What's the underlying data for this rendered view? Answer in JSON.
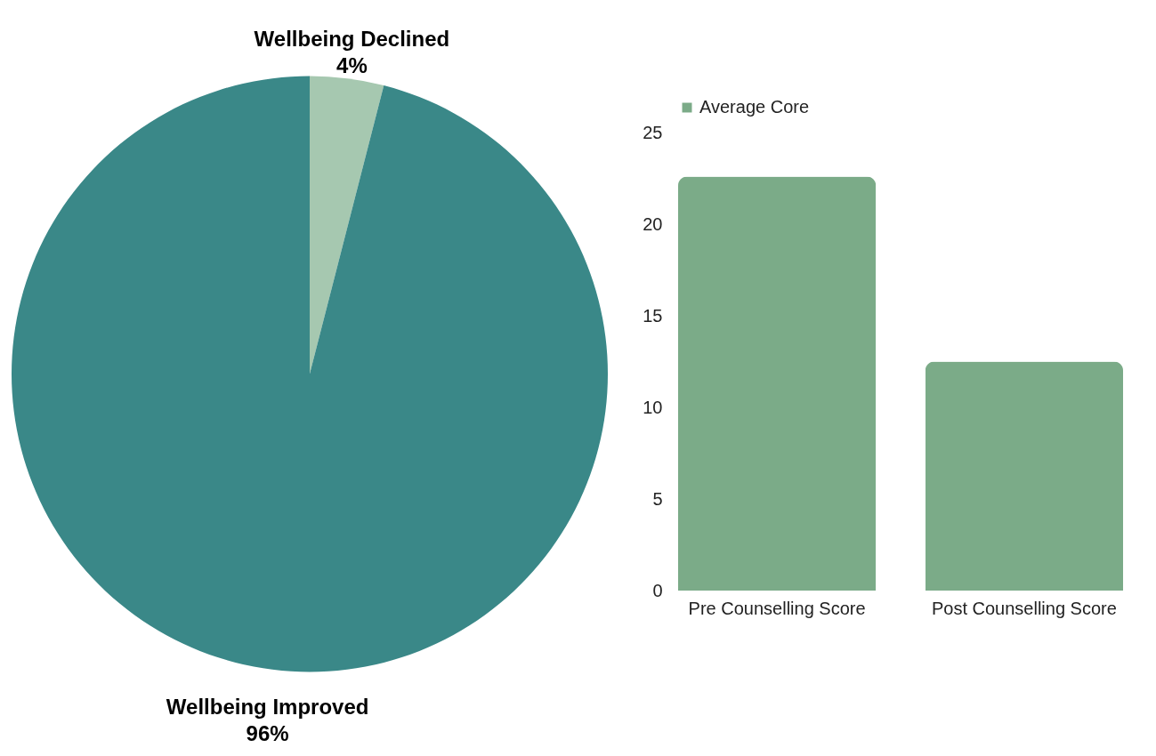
{
  "chart_data": [
    {
      "type": "pie",
      "categories": [
        "Wellbeing Declined",
        "Wellbeing Improved"
      ],
      "values": [
        4,
        96
      ],
      "colors": [
        "#a6c8b0",
        "#3a8888"
      ],
      "value_labels": [
        "4%",
        "96%"
      ]
    },
    {
      "type": "bar",
      "categories": [
        "Pre Counselling Score",
        "Post Counselling Score"
      ],
      "series": [
        {
          "name": "Average Core",
          "color": "#7bab88",
          "values": [
            22.6,
            12.5
          ]
        }
      ],
      "ylim": [
        0,
        25
      ],
      "yticks": [
        0,
        5,
        10,
        15,
        20,
        25
      ],
      "legend": "top",
      "grid": false
    }
  ]
}
